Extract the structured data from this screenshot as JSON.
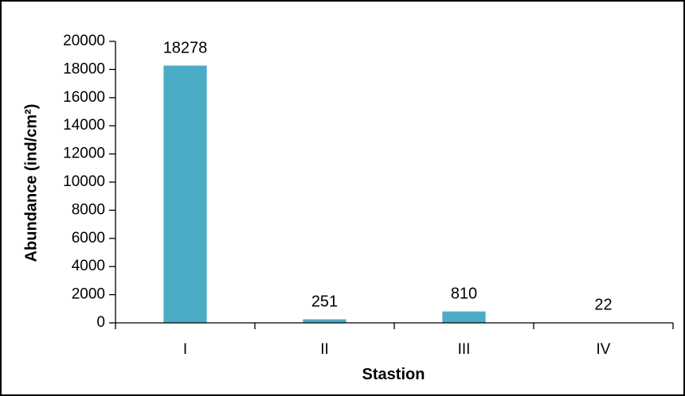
{
  "chart_data": {
    "type": "bar",
    "categories": [
      "I",
      "II",
      "III",
      "IV"
    ],
    "values": [
      18278,
      251,
      810,
      22
    ],
    "data_labels": [
      "18278",
      "251",
      "810",
      "22"
    ],
    "xlabel": "Stastion",
    "ylabel": "Abundance (ind/cm²)",
    "ylim": [
      0,
      20000
    ],
    "yticks": [
      0,
      2000,
      4000,
      6000,
      8000,
      10000,
      12000,
      14000,
      16000,
      18000,
      20000
    ],
    "ytick_labels": [
      "0",
      "2000",
      "4000",
      "6000",
      "8000",
      "10000",
      "12000",
      "14000",
      "16000",
      "18000",
      "20000"
    ],
    "grid": false,
    "legend": "none",
    "colors": {
      "bar": "#4BACC6",
      "axis": "#000000",
      "border": "#000000"
    }
  }
}
